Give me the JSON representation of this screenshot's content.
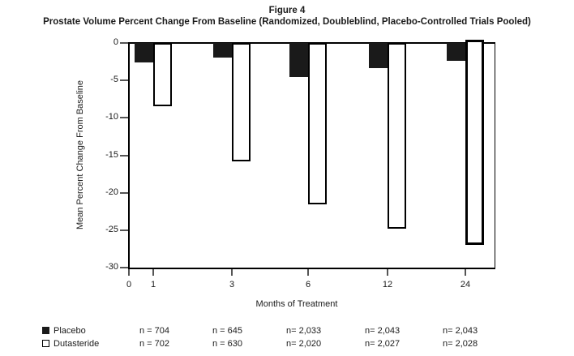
{
  "colors": {
    "bar_filled": "#1a1a1a",
    "bar_outlined_fill": "#ffffff",
    "axis": "#000000",
    "tick": "#555555",
    "text": "#1a1a1a"
  },
  "chart_data": {
    "type": "bar",
    "title": "Figure 4",
    "subtitle": "Prostate Volume Percent Change From Baseline (Randomized, Doubleblind, Placebo-Controlled Trials Pooled)",
    "xlabel": "Months of Treatment",
    "ylabel": "Mean Percent Change From Baseline",
    "categories": [
      "1",
      "3",
      "6",
      "12",
      "24"
    ],
    "series": [
      {
        "name": "Placebo",
        "style": "filled",
        "color": "#1a1a1a",
        "values": [
          -2.6,
          -2.0,
          -4.6,
          -3.4,
          -2.4
        ]
      },
      {
        "name": "Dutasteride",
        "style": "outlined",
        "color": "#ffffff",
        "values": [
          -8.5,
          -15.8,
          -21.5,
          -24.8,
          -27.0
        ]
      }
    ],
    "ylim": [
      -30,
      0
    ],
    "yticks": [
      "0",
      "-5",
      "-10",
      "-15",
      "-20",
      "-25",
      "-30"
    ],
    "xticks": [
      "0",
      "1",
      "3",
      "6",
      "12",
      "24"
    ],
    "grid": false,
    "legend_position": "bottom-left"
  },
  "legend": {
    "rows": [
      {
        "label": "Placebo",
        "swatch": "filled-black",
        "n_values": [
          "n = 704",
          "n = 645",
          "n= 2,033",
          "n= 2,043",
          "n= 2,043"
        ]
      },
      {
        "label": "Dutasteride",
        "swatch": "outlined-white",
        "n_values": [
          "n = 702",
          "n = 630",
          "n= 2,020",
          "n= 2,027",
          "n= 2,028"
        ]
      }
    ]
  }
}
